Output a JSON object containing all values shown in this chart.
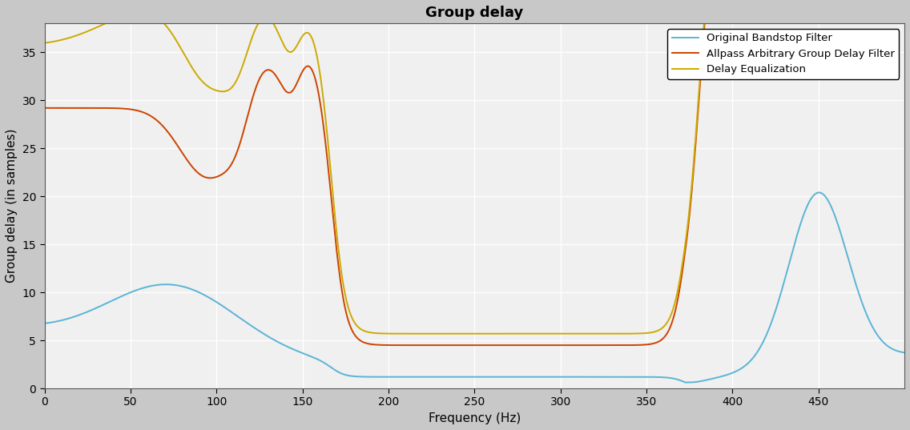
{
  "title": "Group delay",
  "xlabel": "Frequency (Hz)",
  "ylabel": "Group delay (in samples)",
  "xlim": [
    0,
    500
  ],
  "ylim": [
    0,
    38
  ],
  "yticks": [
    0,
    5,
    10,
    15,
    20,
    25,
    30,
    35
  ],
  "xticks": [
    0,
    50,
    100,
    150,
    200,
    250,
    300,
    350,
    400,
    450
  ],
  "line_blue": "#5ab4d6",
  "line_red": "#cc4400",
  "line_yellow": "#ccaa00",
  "legend_labels": [
    "Original Bandstop Filter",
    "Allpass Arbitrary Group Delay Filter",
    "Delay Equalization"
  ],
  "title_fontsize": 13,
  "label_fontsize": 11
}
